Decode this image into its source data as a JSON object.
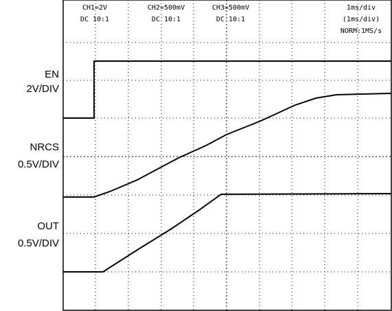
{
  "header": {
    "channels": [
      {
        "scale": "CH1=2V",
        "coupling": "DC 10:1"
      },
      {
        "scale": "CH2=500mV",
        "coupling": "DC 10:1"
      },
      {
        "scale": "CH3=500mV",
        "coupling": "DC 10:1"
      }
    ],
    "timebase": [
      "1ms/div",
      "(1ms/div)",
      "NORM:1MS/s"
    ]
  },
  "traces": [
    {
      "name": "EN",
      "scale": "2V/DIV"
    },
    {
      "name": "NRCS",
      "scale": "0.5V/DIV"
    },
    {
      "name": "OUT",
      "scale": "0.5V/DIV"
    }
  ]
}
